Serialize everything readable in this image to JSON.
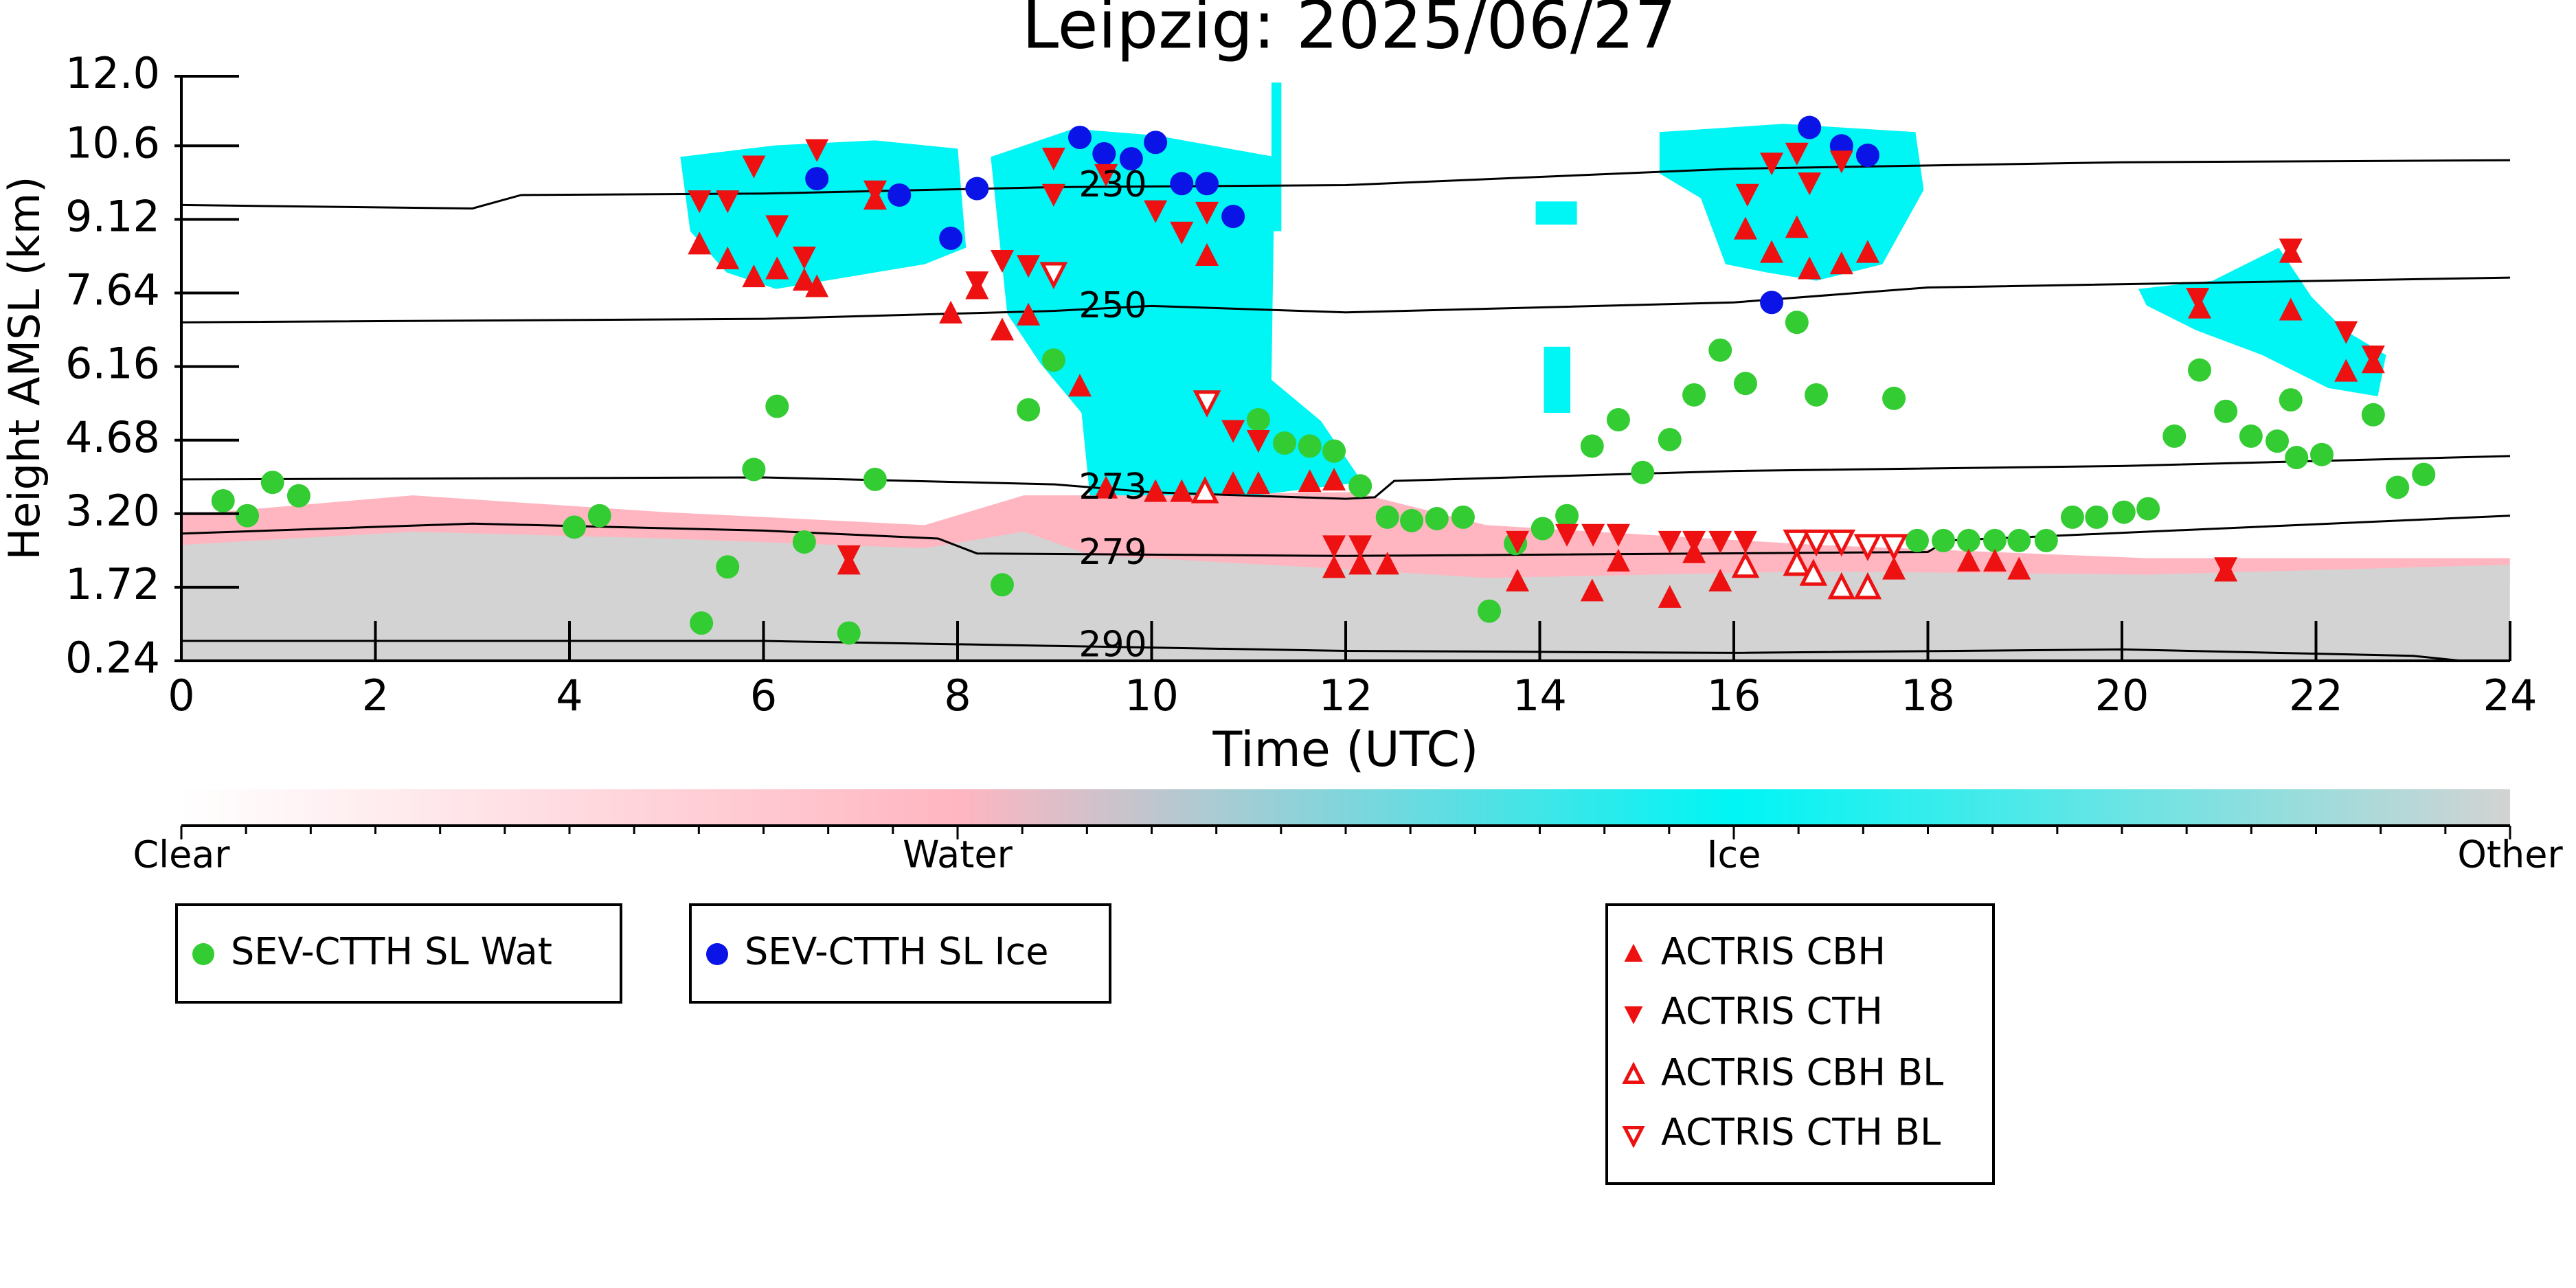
{
  "chart_data": {
    "type": "scatter",
    "title": "Leipzig: 2025/06/27",
    "x_label": "Time (UTC)",
    "y_label": "Height AMSL (km)",
    "xlim": [
      0,
      24
    ],
    "xticks": [
      0,
      2,
      4,
      6,
      8,
      10,
      12,
      14,
      16,
      18,
      20,
      22,
      24
    ],
    "ylim": [
      0.24,
      12
    ],
    "yticks": [
      0.24,
      1.72,
      {
        "value": 3.2,
        "label": "3.20"
      },
      4.68,
      6.16,
      7.64,
      9.12,
      10.6,
      {
        "value": 12,
        "label": "12.0"
      }
    ],
    "series": [
      {
        "name": "SEV-CTTH SL Wat",
        "color": "#33cc33",
        "marker": "circle",
        "filled": true,
        "x": [
          0.43,
          0.68,
          0.94,
          1.21,
          4.05,
          4.31,
          5.36,
          5.63,
          5.9,
          6.14,
          6.42,
          6.88,
          7.15,
          8.46,
          8.73,
          8.99,
          11.1,
          11.37,
          11.63,
          11.88,
          12.15,
          12.43,
          12.68,
          12.94,
          13.21,
          13.48,
          13.75,
          14.03,
          14.28,
          14.54,
          14.81,
          15.06,
          15.34,
          15.59,
          15.86,
          16.12,
          16.65,
          16.85,
          17.65,
          17.89,
          18.16,
          18.42,
          18.69,
          18.94,
          19.22,
          19.49,
          19.74,
          20.02,
          20.27,
          20.54,
          20.8,
          21.07,
          21.33,
          21.6,
          21.74,
          21.8,
          22.06,
          22.59,
          22.84,
          23.11
        ],
        "y": [
          3.46,
          3.16,
          3.83,
          3.56,
          2.93,
          3.16,
          1.0,
          2.13,
          4.09,
          5.36,
          2.63,
          0.8,
          3.89,
          1.77,
          5.29,
          6.29,
          5.09,
          4.62,
          4.56,
          4.46,
          3.76,
          3.13,
          3.06,
          3.1,
          3.13,
          1.24,
          2.6,
          2.9,
          3.16,
          4.56,
          5.09,
          4.03,
          4.69,
          5.59,
          6.49,
          5.82,
          7.05,
          5.59,
          5.52,
          2.66,
          2.66,
          2.66,
          2.66,
          2.66,
          2.66,
          3.13,
          3.13,
          3.23,
          3.3,
          4.76,
          6.09,
          5.26,
          4.76,
          4.66,
          5.49,
          4.33,
          4.39,
          5.19,
          3.73,
          3.99
        ]
      },
      {
        "name": "SEV-CTTH SL Ice",
        "color": "#0a14e6",
        "marker": "circle",
        "filled": true,
        "x": [
          6.55,
          7.4,
          8.2,
          7.93,
          9.26,
          9.51,
          9.79,
          10.04,
          10.31,
          10.57,
          10.84,
          16.39,
          16.78,
          17.11,
          17.38
        ],
        "y": [
          9.94,
          9.61,
          9.74,
          8.74,
          10.77,
          10.44,
          10.34,
          10.67,
          9.84,
          9.84,
          9.18,
          7.45,
          10.97,
          10.6,
          10.41
        ]
      },
      {
        "name": "ACTRIS CBH",
        "color": "#ee1111",
        "marker": "triangle-up",
        "filled": true,
        "x": [
          5.34,
          5.63,
          5.9,
          6.14,
          6.42,
          6.55,
          6.88,
          7.15,
          7.93,
          8.2,
          8.46,
          8.73,
          9.26,
          9.53,
          10.04,
          10.31,
          10.57,
          10.84,
          11.1,
          11.63,
          11.88,
          11.88,
          12.15,
          12.43,
          13.77,
          14.54,
          14.81,
          15.34,
          15.59,
          15.86,
          16.12,
          16.39,
          16.65,
          16.78,
          17.11,
          17.38,
          17.65,
          18.42,
          18.69,
          18.94,
          20.8,
          21.07,
          21.74,
          21.74,
          22.31,
          22.59
        ],
        "y": [
          8.61,
          8.31,
          7.95,
          8.11,
          7.88,
          7.75,
          2.17,
          9.51,
          7.22,
          7.71,
          6.88,
          7.18,
          5.75,
          3.7,
          3.63,
          3.63,
          8.38,
          3.79,
          3.79,
          3.83,
          3.86,
          2.1,
          2.17,
          2.17,
          1.83,
          1.63,
          2.23,
          1.5,
          2.4,
          1.83,
          8.91,
          8.44,
          8.94,
          8.11,
          8.21,
          8.44,
          2.07,
          2.23,
          2.23,
          2.07,
          7.32,
          2.03,
          7.28,
          8.44,
          6.05,
          6.22
        ]
      },
      {
        "name": "ACTRIS CTH",
        "color": "#ee1111",
        "marker": "triangle-down",
        "filled": true,
        "x": [
          5.34,
          5.63,
          5.9,
          6.14,
          6.42,
          6.55,
          6.88,
          7.15,
          8.2,
          8.46,
          8.73,
          8.99,
          8.99,
          9.53,
          10.04,
          10.31,
          10.57,
          10.84,
          11.1,
          11.88,
          12.15,
          13.77,
          14.28,
          14.55,
          14.81,
          15.34,
          15.59,
          15.86,
          16.12,
          16.14,
          16.39,
          16.65,
          16.78,
          17.11,
          20.78,
          21.07,
          21.74,
          22.31,
          22.59
        ],
        "y": [
          9.51,
          9.51,
          10.21,
          9.01,
          8.38,
          10.54,
          2.37,
          9.71,
          7.88,
          8.31,
          8.21,
          10.37,
          9.64,
          10.04,
          9.31,
          8.88,
          9.28,
          4.89,
          4.69,
          2.57,
          2.57,
          2.66,
          2.8,
          2.8,
          2.8,
          2.66,
          2.66,
          2.66,
          2.66,
          9.64,
          10.27,
          10.47,
          9.87,
          10.31,
          7.55,
          2.13,
          8.54,
          6.88,
          6.39
        ]
      },
      {
        "name": "ACTRIS CBH BL",
        "color": "#ee1111",
        "marker": "triangle-up",
        "filled": false,
        "x": [
          10.55,
          16.12,
          16.65,
          16.82,
          17.11,
          17.38
        ],
        "y": [
          3.63,
          2.13,
          2.17,
          1.97,
          1.7,
          1.7
        ]
      },
      {
        "name": "ACTRIS CTH BL",
        "color": "#ee1111",
        "marker": "triangle-down",
        "filled": false,
        "x": [
          8.99,
          10.57,
          16.65,
          16.85,
          17.11,
          17.38,
          17.65
        ],
        "y": [
          8.04,
          5.46,
          2.66,
          2.66,
          2.66,
          2.57,
          2.57
        ]
      }
    ],
    "contours": [
      {
        "level": 230,
        "x": [
          0,
          3,
          3.5,
          6,
          9,
          12,
          16,
          20,
          24
        ],
        "y": [
          9.41,
          9.34,
          9.61,
          9.64,
          9.77,
          9.81,
          10.14,
          10.27,
          10.31
        ]
      },
      {
        "level": 250,
        "x": [
          0,
          6,
          9,
          10,
          12,
          16,
          18,
          24
        ],
        "y": [
          7.05,
          7.12,
          7.28,
          7.38,
          7.25,
          7.45,
          7.75,
          7.95
        ]
      },
      {
        "level": 273,
        "x": [
          0,
          6,
          9,
          10,
          12,
          12.3,
          12.5,
          16,
          20,
          24
        ],
        "y": [
          3.89,
          3.93,
          3.79,
          3.63,
          3.5,
          3.53,
          3.86,
          4.06,
          4.16,
          4.36
        ]
      },
      {
        "level": 279,
        "x": [
          0,
          3,
          6,
          7.8,
          8.2,
          12,
          18,
          18.2,
          24
        ],
        "y": [
          2.8,
          3.0,
          2.86,
          2.7,
          2.4,
          2.35,
          2.43,
          2.66,
          3.16
        ]
      },
      {
        "level": 290,
        "x": [
          0,
          6,
          9,
          12,
          16,
          20,
          23,
          23.5
        ],
        "y": [
          0.64,
          0.64,
          0.54,
          0.44,
          0.4,
          0.47,
          0.34,
          0.24
        ]
      }
    ],
    "colorbar": {
      "labels": [
        "Clear",
        "Water",
        "Ice",
        "Other"
      ],
      "colors": [
        "#ffffff",
        "#ffb6c1",
        "#00f5f5",
        "#d3d3d3"
      ]
    }
  }
}
